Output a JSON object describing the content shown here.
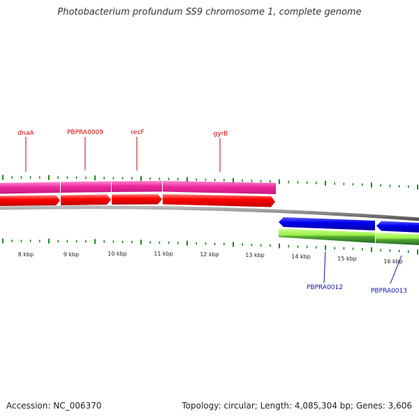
{
  "title": "Photobacterium profundum SS9 chromosome 1, complete genome",
  "footer": {
    "accession": "Accession: NC_006370",
    "summary": "Topology: circular; Length: 4,085,304 bp; Genes: 3,606"
  },
  "colors": {
    "background": "#ffffff",
    "backbone": "#888888",
    "forward_gene_band": "#ee2a9e",
    "forward_cds": "#ff0000",
    "reverse_cds": "#0000ee",
    "reverse_gene_band_light": "#99ee44",
    "reverse_gene_band_dark": "#339933",
    "ticks": "#1a8a1a",
    "forward_label": "#cc0000",
    "reverse_label": "#1010b0"
  },
  "scale_ticks": [
    "8 kbp",
    "9 kbp",
    "10 kbp",
    "11 kbp",
    "12 kbp",
    "13 kbp",
    "14 kbp",
    "15 kbp",
    "16 kbp"
  ],
  "forward_features": [
    {
      "label": "dnaA"
    },
    {
      "label": "PBPRA0009"
    },
    {
      "label": "recF"
    },
    {
      "label": "gyrB"
    }
  ],
  "reverse_features": [
    {
      "label": "PBPRA0012"
    },
    {
      "label": "PBPRA0013"
    }
  ]
}
